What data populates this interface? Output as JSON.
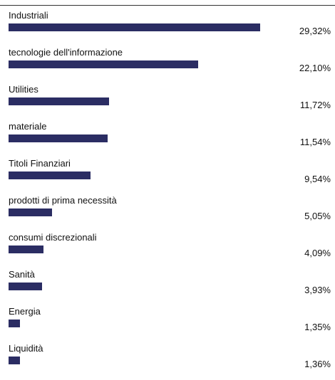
{
  "chart_data": {
    "type": "bar",
    "orientation": "horizontal",
    "categories": [
      "Industriali",
      "tecnologie dell'informazione",
      "Utilities",
      "materiale",
      "Titoli Finanziari",
      "prodotti di prima necessità",
      "consumi discrezionali",
      "Sanità",
      "Energia",
      "Liquidità"
    ],
    "values": [
      29.32,
      22.1,
      11.72,
      11.54,
      9.54,
      5.05,
      4.09,
      3.93,
      1.35,
      1.36
    ],
    "value_labels": [
      "29,32%",
      "22,10%",
      "11,72%",
      "11,54%",
      "9,54%",
      "5,05%",
      "4,09%",
      "3,93%",
      "1,35%",
      "1,36%"
    ],
    "unit": "%",
    "bar_color": "#2b2d63",
    "title": "",
    "xlabel": "",
    "ylabel": ""
  }
}
